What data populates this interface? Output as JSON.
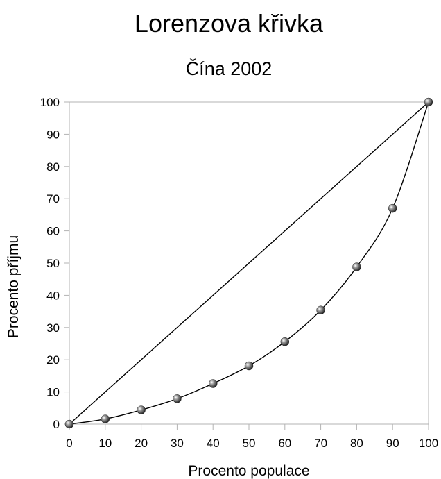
{
  "chart_data": {
    "type": "line",
    "title": "Lorenzova křivka",
    "subtitle": "Čína 2002",
    "xlabel": "Procento populace",
    "ylabel": "Procento příjmu",
    "xlim": [
      0,
      100
    ],
    "ylim": [
      0,
      100
    ],
    "xticks": [
      0,
      10,
      20,
      30,
      40,
      50,
      60,
      70,
      80,
      90,
      100
    ],
    "yticks": [
      0,
      10,
      20,
      30,
      40,
      50,
      60,
      70,
      80,
      90,
      100
    ],
    "grid": false,
    "legend": false,
    "series": [
      {
        "x": [
          0,
          100
        ],
        "y": [
          0,
          100
        ],
        "markers": false
      },
      {
        "x": [
          0,
          10,
          20,
          30,
          40,
          50,
          60,
          70,
          80,
          90,
          100
        ],
        "y": [
          0,
          1.6,
          4.4,
          7.9,
          12.6,
          18.1,
          25.6,
          35.4,
          48.8,
          67,
          100
        ],
        "markers": true,
        "smooth": true
      }
    ]
  }
}
